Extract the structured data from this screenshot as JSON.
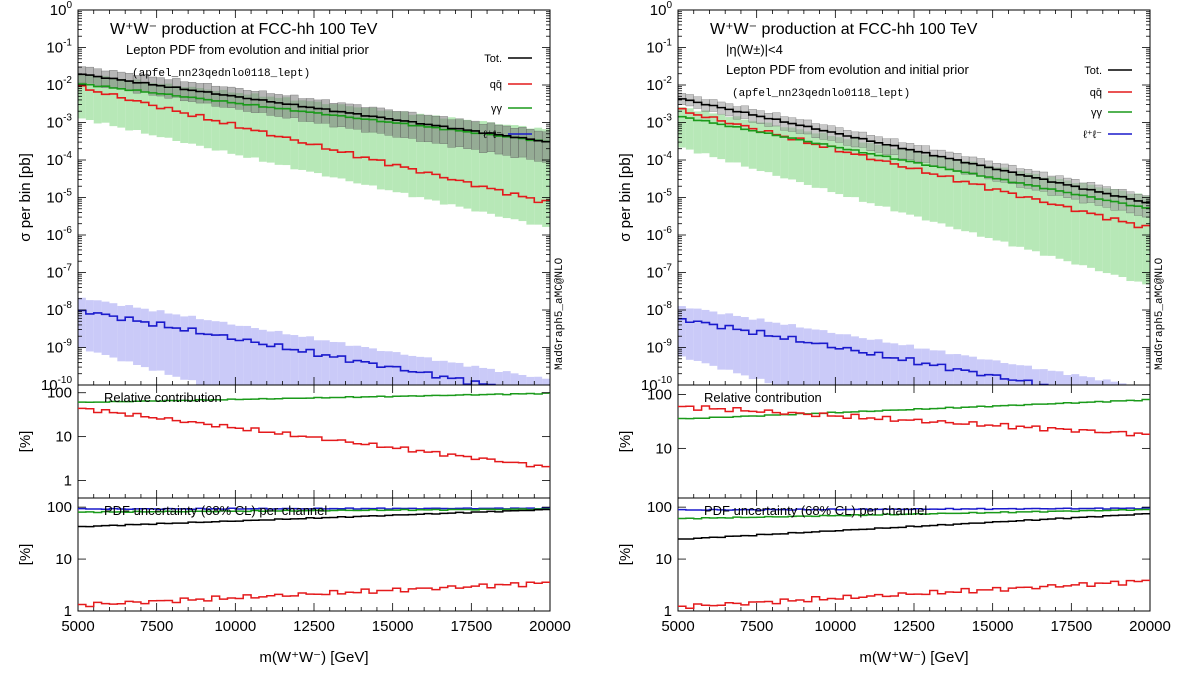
{
  "chart_data": [
    {
      "type": "line",
      "title": "W⁺W⁻ production at FCC-hh 100 TeV",
      "subtitle": "Lepton PDF from evolution and initial prior",
      "cut": "",
      "pdfset": "(apfel_nn23qednlo0118_lept)",
      "generator": "MadGraph5_aMC@NLO",
      "xlabel": "m(W⁺W⁻) [GeV]",
      "ylabel": "σ per bin [pb]",
      "xlim": [
        5000,
        20000
      ],
      "ylim": [
        1e-10,
        1
      ],
      "yscale": "log",
      "xticks": [
        "5000",
        "7500",
        "10000",
        "12500",
        "15000",
        "17500",
        "20000"
      ],
      "legend_position": "top-right",
      "series": [
        {
          "name": "Tot.",
          "color": "#000000",
          "start": 0.02,
          "end": 0.0003,
          "band": "#7a7a7a",
          "band_lo": 0.6,
          "band_hi": 1.6
        },
        {
          "name": "qq̄",
          "color": "#e41a1c",
          "start": 0.009,
          "end": 7e-06
        },
        {
          "name": "γγ",
          "color": "#1a9a1a",
          "start": 0.011,
          "end": 0.0003,
          "band": "#9fe09f",
          "band_lo": 0.12,
          "band_hi": 1.8
        },
        {
          "name": "ℓ⁺ℓ⁻",
          "color": "#1a1acc",
          "start": 1e-08,
          "end": 5e-11,
          "band": "#b8b8f5",
          "band_lo": 0.1,
          "band_hi": 2.2
        }
      ],
      "ratio1": {
        "title": "Relative contribution",
        "ylabel": "[%]",
        "ylim": [
          0.4,
          150
        ],
        "yticks": [
          "100",
          "10",
          "1"
        ],
        "series": [
          {
            "name": "γγ",
            "color": "#1a9a1a",
            "start": 60,
            "end": 97
          },
          {
            "name": "qq̄",
            "color": "#e41a1c",
            "start": 45,
            "end": 2
          }
        ]
      },
      "ratio2": {
        "title": "PDF uncertainty (68% CL) per channel",
        "ylabel": "[%]",
        "ylim": [
          1,
          150
        ],
        "yticks": [
          "100",
          "10",
          "1"
        ],
        "series": [
          {
            "name": "ℓ⁺ℓ⁻",
            "color": "#1a1acc",
            "start": 92,
            "end": 95
          },
          {
            "name": "γγ",
            "color": "#1a9a1a",
            "start": 80,
            "end": 92
          },
          {
            "name": "Tot.",
            "color": "#000000",
            "start": 42,
            "end": 90
          },
          {
            "name": "qq̄",
            "color": "#e41a1c",
            "start": 1.3,
            "end": 3.5
          }
        ]
      }
    },
    {
      "type": "line",
      "title": "W⁺W⁻ production at FCC-hh 100 TeV",
      "subtitle": "Lepton PDF from evolution and initial prior",
      "cut": "|η(W±)|<4",
      "pdfset": "(apfel_nn23qednlo0118_lept)",
      "generator": "MadGraph5_aMC@NLO",
      "xlabel": "m(W⁺W⁻) [GeV]",
      "ylabel": "σ per bin [pb]",
      "xlim": [
        5000,
        20000
      ],
      "ylim": [
        1e-10,
        1
      ],
      "yscale": "log",
      "xticks": [
        "5000",
        "7500",
        "10000",
        "12500",
        "15000",
        "17500",
        "20000"
      ],
      "legend_position": "top-right",
      "series": [
        {
          "name": "Tot.",
          "color": "#000000",
          "start": 0.0045,
          "end": 7e-06,
          "band": "#9a9a9a",
          "band_lo": 0.7,
          "band_hi": 1.4
        },
        {
          "name": "qq̄",
          "color": "#e41a1c",
          "start": 0.0022,
          "end": 1.5e-06
        },
        {
          "name": "γγ",
          "color": "#1a9a1a",
          "start": 0.0015,
          "end": 5e-06,
          "band": "#9fe09f",
          "band_lo": 0.15,
          "band_hi": 1.8
        },
        {
          "name": "ℓ⁺ℓ⁻",
          "color": "#1a1acc",
          "start": 6e-09,
          "end": 3e-11,
          "band": "#b8b8f5",
          "band_lo": 0.1,
          "band_hi": 2.2
        }
      ],
      "ratio1": {
        "title": "Relative contribution",
        "ylabel": "[%]",
        "ylim": [
          1.2,
          150
        ],
        "yticks": [
          "100",
          "10"
        ],
        "series": [
          {
            "name": "γγ",
            "color": "#1a9a1a",
            "start": 35,
            "end": 80
          },
          {
            "name": "qq̄",
            "color": "#e41a1c",
            "start": 60,
            "end": 18
          }
        ]
      },
      "ratio2": {
        "title": "PDF uncertainty (68% CL) per channel",
        "ylabel": "[%]",
        "ylim": [
          1,
          150
        ],
        "yticks": [
          "100",
          "10",
          "1"
        ],
        "series": [
          {
            "name": "ℓ⁺ℓ⁻",
            "color": "#1a1acc",
            "start": 88,
            "end": 95
          },
          {
            "name": "γγ",
            "color": "#1a9a1a",
            "start": 60,
            "end": 90
          },
          {
            "name": "Tot.",
            "color": "#000000",
            "start": 24,
            "end": 75
          },
          {
            "name": "qq̄",
            "color": "#e41a1c",
            "start": 1.2,
            "end": 3.8
          }
        ]
      }
    }
  ]
}
